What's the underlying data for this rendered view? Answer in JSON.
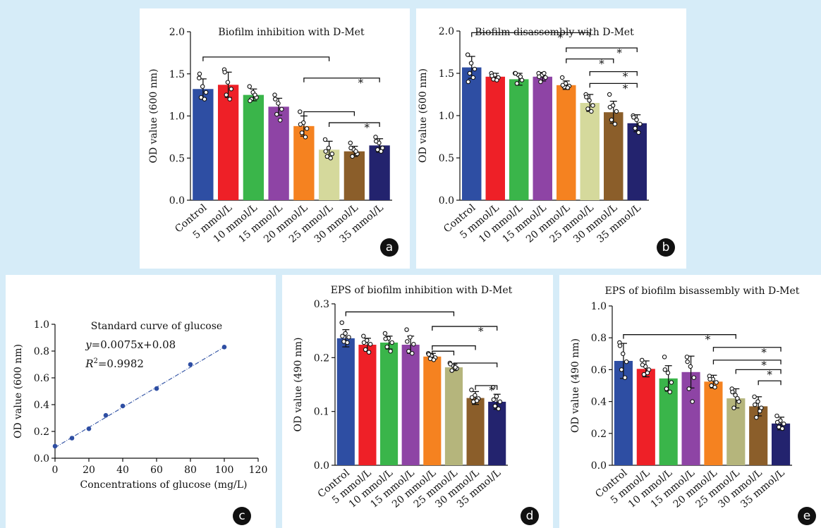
{
  "figure": {
    "background": "#d6ecf8",
    "bar_colors": [
      "#2e4ea3",
      "#ee2027",
      "#3ab54a",
      "#8e44a5",
      "#f58220",
      "#d5d99c",
      "#8b5e2a",
      "#23236e"
    ],
    "bar_colors_d": [
      "#2e4ea3",
      "#ee2027",
      "#3ab54a",
      "#8e44a5",
      "#f58220",
      "#b5b57c",
      "#8b5e2a",
      "#23236e"
    ]
  },
  "chart_data": [
    {
      "panel": "a",
      "type": "bar",
      "title": "Biofilm inhibition with D-Met",
      "ylabel": "OD value (600 nm)",
      "xlabel": "",
      "categories": [
        "Control",
        "5 mmol/L",
        "10 mmol/L",
        "15 mmol/L",
        "20 mmol/L",
        "25 mmol/L",
        "30 mmol/L",
        "35 mmol/L"
      ],
      "values": [
        1.32,
        1.37,
        1.25,
        1.11,
        0.88,
        0.6,
        0.58,
        0.65
      ],
      "errors": [
        0.12,
        0.15,
        0.07,
        0.1,
        0.12,
        0.1,
        0.06,
        0.08
      ],
      "points": [
        [
          1.45,
          1.35,
          1.28,
          1.22,
          1.2,
          1.5
        ],
        [
          1.55,
          1.4,
          1.32,
          1.25,
          1.2,
          1.52
        ],
        [
          1.35,
          1.28,
          1.22,
          1.2,
          1.25,
          1.18
        ],
        [
          1.25,
          1.15,
          1.08,
          1.02,
          0.95,
          1.2
        ],
        [
          1.05,
          0.92,
          0.85,
          0.8,
          0.75,
          0.9
        ],
        [
          0.72,
          0.62,
          0.55,
          0.52,
          0.5,
          0.58
        ],
        [
          0.68,
          0.6,
          0.55,
          0.52,
          0.58,
          0.62
        ],
        [
          0.75,
          0.68,
          0.62,
          0.6,
          0.58,
          0.7
        ]
      ],
      "ylim": [
        0,
        2.0
      ],
      "yticks": [
        "0.0",
        "0.5",
        "1.0",
        "1.5",
        "2.0"
      ],
      "brackets": [
        {
          "from": 0,
          "to": 5,
          "level": 1.7,
          "mark": ""
        },
        {
          "from": 4,
          "to": 7,
          "level": 1.45,
          "mark": "*"
        },
        {
          "from": 4,
          "to": 6,
          "level": 1.05,
          "mark": ""
        },
        {
          "from": 5,
          "to": 7,
          "level": 0.92,
          "mark": "*"
        }
      ],
      "badge": "a"
    },
    {
      "panel": "b",
      "type": "bar",
      "title": "Biofilm disassembly with D-Met",
      "ylabel": "OD value (600 nm)",
      "xlabel": "",
      "categories": [
        "Control",
        "5 mmol/L",
        "10 mmol/L",
        "15 mmol/L",
        "20 mmol/L",
        "25 mmol/L",
        "30 mmol/L",
        "35 mmol/L"
      ],
      "values": [
        1.57,
        1.46,
        1.43,
        1.46,
        1.36,
        1.15,
        1.04,
        0.91
      ],
      "errors": [
        0.13,
        0.04,
        0.07,
        0.05,
        0.05,
        0.1,
        0.13,
        0.1
      ],
      "points": [
        [
          1.72,
          1.62,
          1.55,
          1.5,
          1.45,
          1.4
        ],
        [
          1.5,
          1.48,
          1.45,
          1.43,
          1.42,
          1.47
        ],
        [
          1.5,
          1.48,
          1.42,
          1.38,
          1.46,
          1.5
        ],
        [
          1.5,
          1.48,
          1.45,
          1.4,
          1.5,
          1.46
        ],
        [
          1.45,
          1.38,
          1.35,
          1.34,
          1.33,
          1.36
        ],
        [
          1.25,
          1.18,
          1.12,
          1.08,
          1.05,
          1.22
        ],
        [
          1.25,
          1.12,
          1.05,
          0.95,
          0.9,
          1.1
        ],
        [
          1.0,
          0.95,
          0.9,
          0.85,
          0.8,
          0.98
        ]
      ],
      "ylim": [
        0,
        2.0
      ],
      "yticks": [
        "0.0",
        "0.5",
        "1.0",
        "1.5",
        "2.0"
      ],
      "brackets": [
        {
          "from": 0,
          "to": 5,
          "level": 1.98,
          "mark": "*"
        },
        {
          "from": 4,
          "to": 7,
          "level": 1.8,
          "mark": "*"
        },
        {
          "from": 4,
          "to": 6,
          "level": 1.67,
          "mark": "*"
        },
        {
          "from": 5,
          "to": 7,
          "level": 1.52,
          "mark": "*"
        },
        {
          "from": 5,
          "to": 7,
          "level": 1.38,
          "mark": "*"
        }
      ],
      "badge": "b"
    },
    {
      "panel": "c",
      "type": "scatter",
      "title": "Standard curve of glucose",
      "ylabel": "OD value (600 nm)",
      "xlabel": "Concentrations of glucose (mg/L)",
      "x": [
        0,
        10,
        20,
        30,
        40,
        60,
        80,
        100
      ],
      "y": [
        0.09,
        0.15,
        0.22,
        0.32,
        0.39,
        0.52,
        0.7,
        0.83
      ],
      "fit": {
        "slope": 0.0075,
        "intercept": 0.08
      },
      "equation": "=0.0075x+0.08",
      "equation_var": "y",
      "r2_var": "R",
      "r2_exp": "2",
      "r2_value": "=0.9982",
      "xlim": [
        0,
        120
      ],
      "ylim": [
        0,
        1.0
      ],
      "xticks": [
        "0",
        "20",
        "40",
        "60",
        "80",
        "100",
        "120"
      ],
      "yticks": [
        "0.0",
        "0.2",
        "0.4",
        "0.6",
        "0.8",
        "1.0"
      ],
      "badge": "c"
    },
    {
      "panel": "d",
      "type": "bar",
      "title": "EPS of biofilm inhibition with D-Met",
      "ylabel": "OD value (490 nm)",
      "xlabel": "",
      "categories": [
        "Control",
        "5 mmol/L",
        "10 mmol/L",
        "15 mmol/L",
        "20 mmol/L",
        "25 mmol/L",
        "30 mmol/L",
        "35 mmol/L"
      ],
      "values": [
        0.236,
        0.224,
        0.228,
        0.224,
        0.202,
        0.182,
        0.125,
        0.118
      ],
      "errors": [
        0.016,
        0.012,
        0.012,
        0.016,
        0.006,
        0.006,
        0.012,
        0.014
      ],
      "points": [
        [
          0.265,
          0.245,
          0.238,
          0.23,
          0.228,
          0.24
        ],
        [
          0.24,
          0.232,
          0.225,
          0.215,
          0.21,
          0.228
        ],
        [
          0.245,
          0.236,
          0.228,
          0.22,
          0.212,
          0.235
        ],
        [
          0.252,
          0.238,
          0.225,
          0.212,
          0.208,
          0.23
        ],
        [
          0.208,
          0.204,
          0.2,
          0.198,
          0.196,
          0.206
        ],
        [
          0.19,
          0.185,
          0.18,
          0.176,
          0.182,
          0.188
        ],
        [
          0.14,
          0.13,
          0.124,
          0.118,
          0.12,
          0.126
        ],
        [
          0.145,
          0.128,
          0.118,
          0.11,
          0.105,
          0.122
        ]
      ],
      "ylim": [
        0,
        0.3
      ],
      "yticks": [
        "0.0",
        "0.1",
        "0.2",
        "0.3"
      ],
      "brackets": [
        {
          "from": 0,
          "to": 5,
          "level": 0.285,
          "mark": ""
        },
        {
          "from": 4,
          "to": 7,
          "level": 0.258,
          "mark": "*"
        },
        {
          "from": 4,
          "to": 6,
          "level": 0.222,
          "mark": ""
        },
        {
          "from": 4,
          "to": 5,
          "level": 0.212,
          "mark": ""
        },
        {
          "from": 5,
          "to": 7,
          "level": 0.19,
          "mark": ""
        },
        {
          "from": 6,
          "to": 7,
          "level": 0.148,
          "mark": "*"
        }
      ],
      "badge": "d"
    },
    {
      "panel": "e",
      "type": "bar",
      "title": "EPS of biofilm bisassembly with D-Met",
      "ylabel": "OD value (490 nm)",
      "xlabel": "",
      "categories": [
        "Control",
        "5 mmol/L",
        "10 mmol/L",
        "15 mmol/L",
        "20 mmol/L",
        "25 mmol/L",
        "30 mmol/L",
        "35 mmol/L"
      ],
      "values": [
        0.655,
        0.605,
        0.545,
        0.585,
        0.525,
        0.42,
        0.37,
        0.262
      ],
      "errors": [
        0.11,
        0.05,
        0.08,
        0.1,
        0.04,
        0.06,
        0.06,
        0.04
      ],
      "points": [
        [
          0.77,
          0.7,
          0.65,
          0.6,
          0.55,
          0.75
        ],
        [
          0.66,
          0.62,
          0.6,
          0.57,
          0.58,
          0.63
        ],
        [
          0.68,
          0.58,
          0.52,
          0.48,
          0.46,
          0.6
        ],
        [
          0.68,
          0.62,
          0.55,
          0.48,
          0.4,
          0.65
        ],
        [
          0.56,
          0.54,
          0.52,
          0.5,
          0.49,
          0.54
        ],
        [
          0.48,
          0.44,
          0.4,
          0.36,
          0.42,
          0.46
        ],
        [
          0.43,
          0.4,
          0.36,
          0.3,
          0.34,
          0.38
        ],
        [
          0.31,
          0.28,
          0.26,
          0.24,
          0.23,
          0.27
        ]
      ],
      "ylim": [
        0,
        1.0
      ],
      "yticks": [
        "0.0",
        "0.2",
        "0.4",
        "0.6",
        "0.8",
        "1.0"
      ],
      "brackets": [
        {
          "from": 0,
          "to": 5,
          "level": 0.82,
          "mark": "*"
        },
        {
          "from": 4,
          "to": 7,
          "level": 0.74,
          "mark": "*"
        },
        {
          "from": 4,
          "to": 7,
          "level": 0.66,
          "mark": "*"
        },
        {
          "from": 5,
          "to": 7,
          "level": 0.6,
          "mark": "*"
        },
        {
          "from": 6,
          "to": 7,
          "level": 0.53,
          "mark": ""
        }
      ],
      "badge": "e"
    }
  ]
}
